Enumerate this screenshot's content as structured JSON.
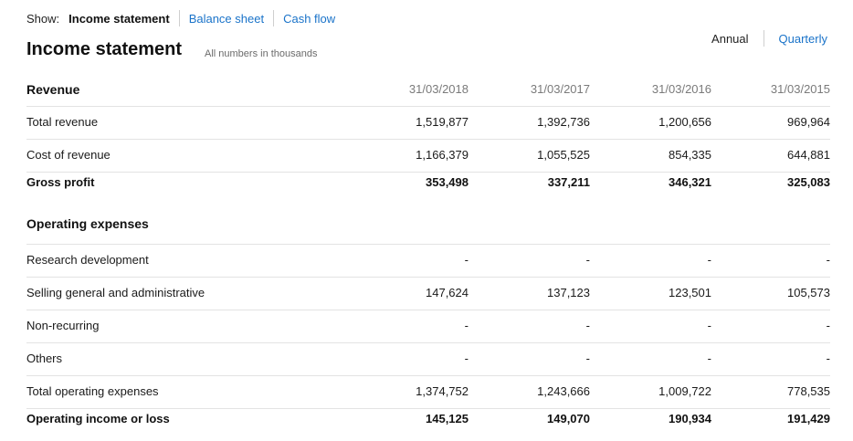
{
  "show": {
    "label": "Show:",
    "active": "Income statement",
    "links": [
      "Balance sheet",
      "Cash flow"
    ]
  },
  "title": "Income statement",
  "note": "All numbers in thousands",
  "period": {
    "active": "Annual",
    "other": "Quarterly"
  },
  "revenue": {
    "heading": "Revenue",
    "dates": [
      "31/03/2018",
      "31/03/2017",
      "31/03/2016",
      "31/03/2015"
    ],
    "rows": [
      {
        "label": "Total revenue",
        "values": [
          "1,519,877",
          "1,392,736",
          "1,200,656",
          "969,964"
        ]
      },
      {
        "label": "Cost of revenue",
        "values": [
          "1,166,379",
          "1,055,525",
          "854,335",
          "644,881"
        ]
      },
      {
        "label": "Gross profit",
        "values": [
          "353,498",
          "337,211",
          "346,321",
          "325,083"
        ]
      }
    ]
  },
  "operating": {
    "heading": "Operating expenses",
    "rows": [
      {
        "label": "Research development",
        "values": [
          "-",
          "-",
          "-",
          "-"
        ]
      },
      {
        "label": "Selling general and administrative",
        "values": [
          "147,624",
          "137,123",
          "123,501",
          "105,573"
        ]
      },
      {
        "label": "Non-recurring",
        "values": [
          "-",
          "-",
          "-",
          "-"
        ]
      },
      {
        "label": "Others",
        "values": [
          "-",
          "-",
          "-",
          "-"
        ]
      },
      {
        "label": "Total operating expenses",
        "values": [
          "1,374,752",
          "1,243,666",
          "1,009,722",
          "778,535"
        ]
      },
      {
        "label": "Operating income or loss",
        "values": [
          "145,125",
          "149,070",
          "190,934",
          "191,429"
        ]
      }
    ]
  }
}
